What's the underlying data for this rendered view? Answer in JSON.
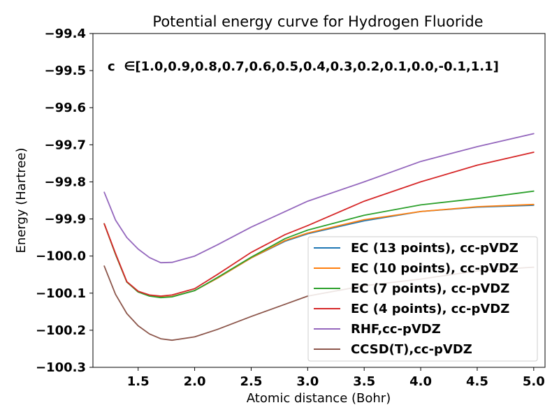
{
  "chart_data": {
    "type": "line",
    "title": "Potential energy curve for Hydrogen Fluoride",
    "xlabel": "Atomic distance (Bohr)",
    "ylabel": "Energy (Hartree)",
    "xlim": [
      1.1,
      5.1
    ],
    "ylim": [
      -100.3,
      -99.4
    ],
    "xticks": [
      "1.5",
      "2.0",
      "2.5",
      "3.0",
      "3.5",
      "4.0",
      "4.5",
      "5.0"
    ],
    "yticks": [
      "−99.4",
      "−99.5",
      "−99.6",
      "−99.7",
      "−99.8",
      "−99.9",
      "−100.0",
      "−100.1",
      "−100.2",
      "−100.3"
    ],
    "annotation": "c  ∈[1.0,0.9,0.8,0.7,0.6,0.5,0.4,0.3,0.2,0.1,0.0,-0.1,1.1]",
    "legend_position": "lower right",
    "x": [
      1.2,
      1.3,
      1.4,
      1.5,
      1.6,
      1.7,
      1.8,
      2.0,
      2.2,
      2.5,
      2.8,
      3.0,
      3.5,
      4.0,
      4.5,
      5.0
    ],
    "series": [
      {
        "name": "EC (13 points), cc-pVDZ",
        "color": "#1f77b4",
        "values": [
          -99.913,
          -99.995,
          -100.07,
          -100.095,
          -100.107,
          -100.111,
          -100.109,
          -100.093,
          -100.06,
          -100.005,
          -99.96,
          -99.94,
          -99.905,
          -99.88,
          -99.868,
          -99.863
        ]
      },
      {
        "name": "EC (10 points), cc-pVDZ",
        "color": "#ff7f0e",
        "values": [
          -99.913,
          -99.995,
          -100.07,
          -100.095,
          -100.107,
          -100.111,
          -100.109,
          -100.093,
          -100.06,
          -100.005,
          -99.958,
          -99.938,
          -99.902,
          -99.88,
          -99.867,
          -99.861
        ]
      },
      {
        "name": "EC (7 points), cc-pVDZ",
        "color": "#2ca02c",
        "values": [
          -99.913,
          -99.995,
          -100.07,
          -100.097,
          -100.108,
          -100.112,
          -100.11,
          -100.093,
          -100.058,
          -100.003,
          -99.953,
          -99.93,
          -99.89,
          -99.862,
          -99.845,
          -99.825
        ]
      },
      {
        "name": "EC (4 points), cc-pVDZ",
        "color": "#d62728",
        "values": [
          -99.913,
          -99.993,
          -100.069,
          -100.095,
          -100.105,
          -100.108,
          -100.105,
          -100.088,
          -100.05,
          -99.99,
          -99.942,
          -99.918,
          -99.852,
          -99.8,
          -99.755,
          -99.72
        ]
      },
      {
        "name": "RHF,cc-pVDZ",
        "color": "#9467bd",
        "values": [
          -99.828,
          -99.903,
          -99.95,
          -99.981,
          -100.004,
          -100.018,
          -100.017,
          -100.0,
          -99.97,
          -99.922,
          -99.88,
          -99.852,
          -99.8,
          -99.745,
          -99.705,
          -99.67
        ]
      },
      {
        "name": "CCSD(T),cc-pVDZ",
        "color": "#8c564b",
        "values": [
          -100.027,
          -100.103,
          -100.155,
          -100.188,
          -100.21,
          -100.223,
          -100.227,
          -100.218,
          -100.198,
          -100.163,
          -100.13,
          -100.108,
          -100.08,
          -100.062,
          -100.04,
          -100.03
        ]
      }
    ]
  }
}
